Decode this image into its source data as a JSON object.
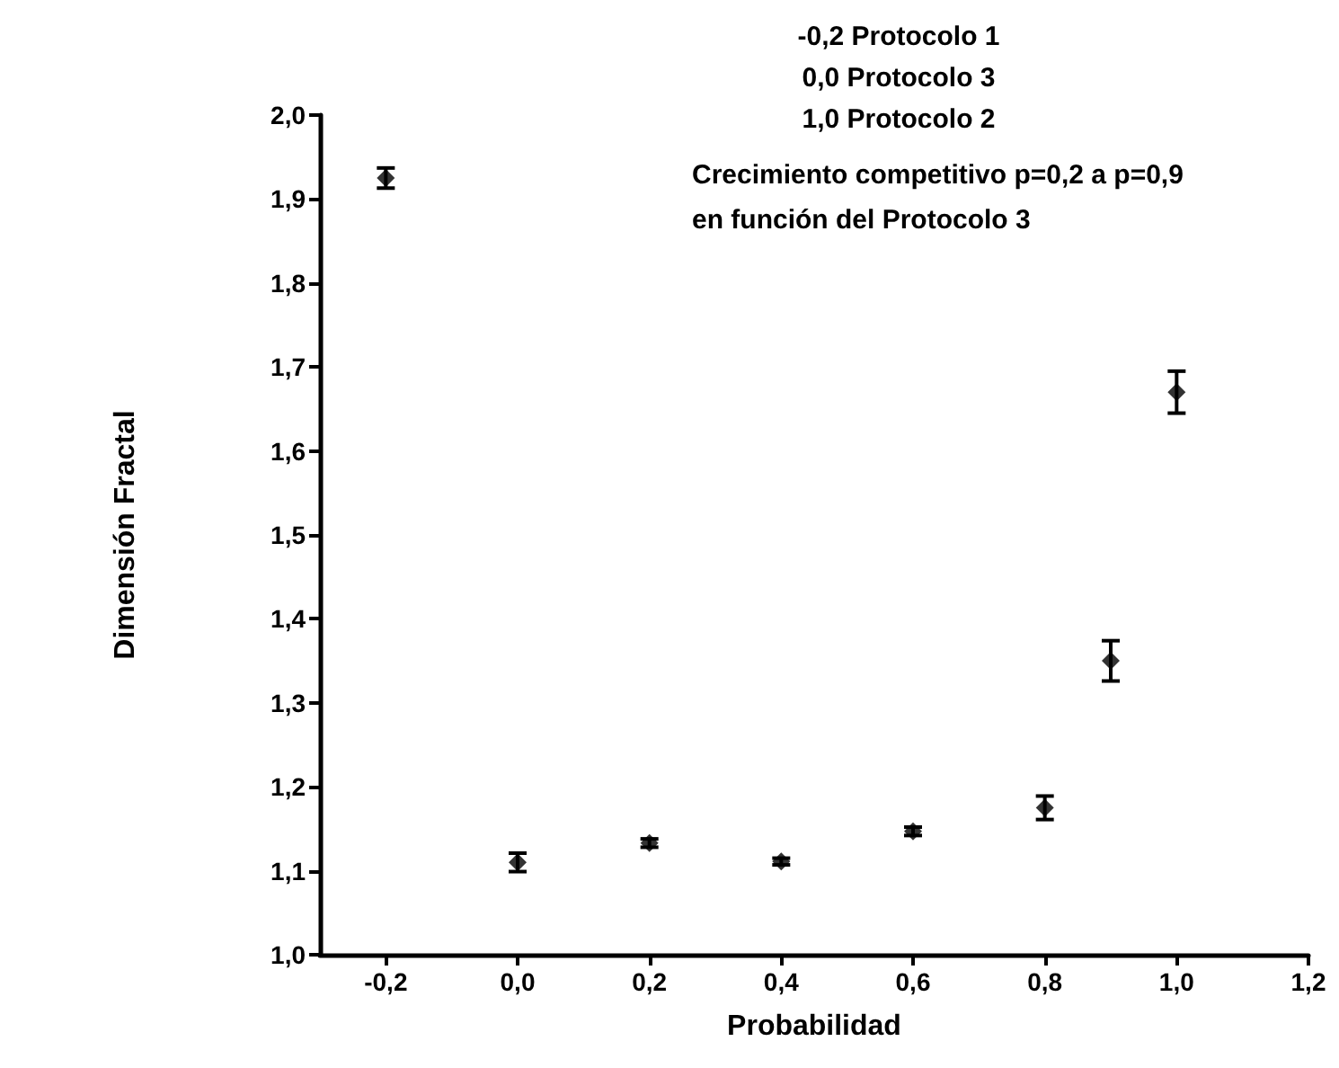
{
  "chart_data": {
    "type": "scatter",
    "xlabel": "Probabilidad",
    "ylabel": "Dimensión Fractal",
    "annotations": [
      "-0,2 Protocolo 1",
      "0,0 Protocolo 3",
      "1,0 Protocolo 2",
      "Crecimiento competitivo p=0,2 a p=0,9 en función del Protocolo 3"
    ],
    "x": [
      -0.2,
      0.0,
      0.2,
      0.4,
      0.6,
      0.8,
      0.9,
      1.0
    ],
    "series": [
      {
        "color": "#000000",
        "values": [
          1.925,
          1.11,
          1.133,
          1.111,
          1.147,
          1.175,
          1.35,
          1.67
        ],
        "errors": [
          0.012,
          0.011,
          0.005,
          0.004,
          0.005,
          0.014,
          0.024,
          0.025
        ]
      }
    ],
    "xlim": [
      -0.3,
      1.2
    ],
    "xticks": [
      {
        "value": -0.2,
        "label": "-0,2"
      },
      {
        "value": 0.0,
        "label": "0,0"
      },
      {
        "value": 0.2,
        "label": "0,2"
      },
      {
        "value": 0.4,
        "label": "0,4"
      },
      {
        "value": 0.6,
        "label": "0,6"
      },
      {
        "value": 0.8,
        "label": "0,8"
      },
      {
        "value": 1.0,
        "label": "1,0"
      },
      {
        "value": 1.2,
        "label": "1,2"
      }
    ],
    "ylim": [
      1.0,
      2.0
    ],
    "yticks": [
      {
        "value": 1.0,
        "label": "1,0"
      },
      {
        "value": 1.1,
        "label": "1,1"
      },
      {
        "value": 1.2,
        "label": "1,2"
      },
      {
        "value": 1.3,
        "label": "1,3"
      },
      {
        "value": 1.4,
        "label": "1,4"
      },
      {
        "value": 1.5,
        "label": "1,5"
      },
      {
        "value": 1.6,
        "label": "1,6"
      },
      {
        "value": 1.7,
        "label": "1,7"
      },
      {
        "value": 1.8,
        "label": "1,8"
      },
      {
        "value": 1.9,
        "label": "1,9"
      },
      {
        "value": 2.0,
        "label": "2,0"
      }
    ],
    "marker": "diamond",
    "grid": false
  }
}
